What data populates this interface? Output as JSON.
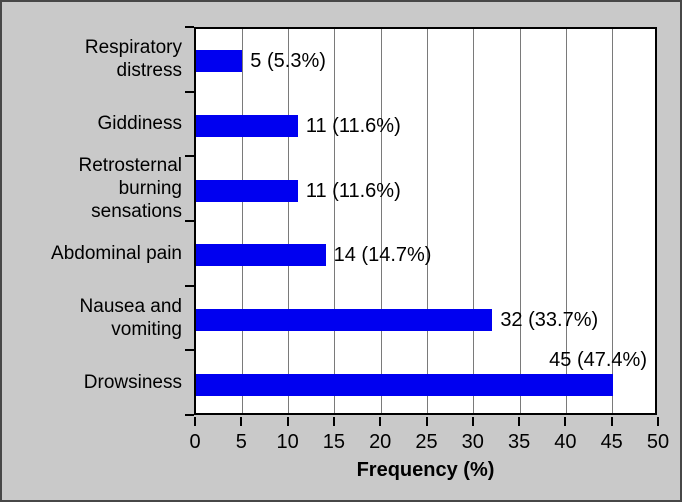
{
  "window": {
    "background_color": "#c9c9c9",
    "frame_border_color": "#474747",
    "plot_background_color": "#ffffff",
    "gridline_color": "#7a7a7a",
    "text_color": "#000000"
  },
  "chart_data": {
    "type": "bar",
    "orientation": "horizontal",
    "title": "",
    "xlabel": "Frequency (%)",
    "ylabel": "",
    "xlim": [
      0,
      50
    ],
    "x_ticks": [
      0,
      5,
      10,
      15,
      20,
      25,
      30,
      35,
      40,
      45,
      50
    ],
    "grid": "vertical gridlines at every x tick",
    "legend": "none",
    "bar_color": "#0000f0",
    "categories": [
      "Respiratory\ndistress",
      "Giddiness",
      "Retrosternal\nburning\nsensations",
      "Abdominal pain",
      "Nausea and\nvomiting",
      "Drowsiness"
    ],
    "values": [
      5,
      11,
      11,
      14,
      32,
      45
    ],
    "data_labels": [
      "5 (5.3%)",
      "11 (11.6%)",
      "11 (11.6%)",
      "14 (14.7%)",
      "32 (33.7%)",
      "45 (47.4%)"
    ],
    "data_label_positions": [
      "right",
      "right",
      "right",
      "right",
      "right",
      "above"
    ]
  }
}
